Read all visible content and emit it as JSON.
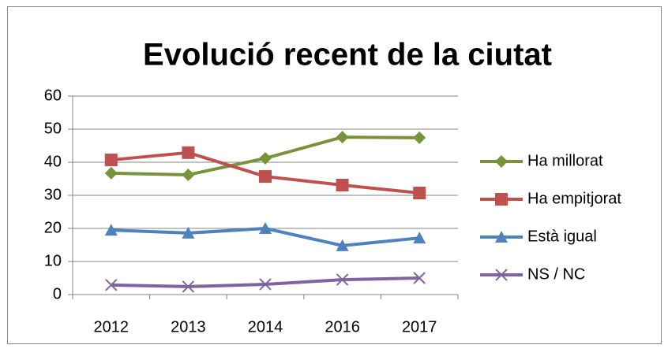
{
  "chart_data": {
    "type": "line",
    "title": "Evolució recent de la ciutat",
    "categories": [
      "2012",
      "2013",
      "2014",
      "2016",
      "2017"
    ],
    "series": [
      {
        "name": "Ha millorat",
        "color": "#77933c",
        "marker": "diamond",
        "values": [
          36.7,
          36.2,
          41.2,
          47.6,
          47.4
        ]
      },
      {
        "name": "Ha empitjorat",
        "color": "#c0504d",
        "marker": "square",
        "values": [
          40.7,
          42.9,
          35.7,
          33.1,
          30.7
        ]
      },
      {
        "name": "Està igual",
        "color": "#4f81bd",
        "marker": "triangle",
        "values": [
          19.5,
          18.6,
          20.0,
          14.8,
          17.1
        ]
      },
      {
        "name": "NS / NC",
        "color": "#8064a2",
        "marker": "x",
        "values": [
          2.9,
          2.4,
          3.1,
          4.5,
          5.0
        ]
      }
    ],
    "ylim": [
      0,
      60
    ],
    "yticks": [
      0,
      10,
      20,
      30,
      40,
      50,
      60
    ],
    "grid": true,
    "legend": "right"
  }
}
